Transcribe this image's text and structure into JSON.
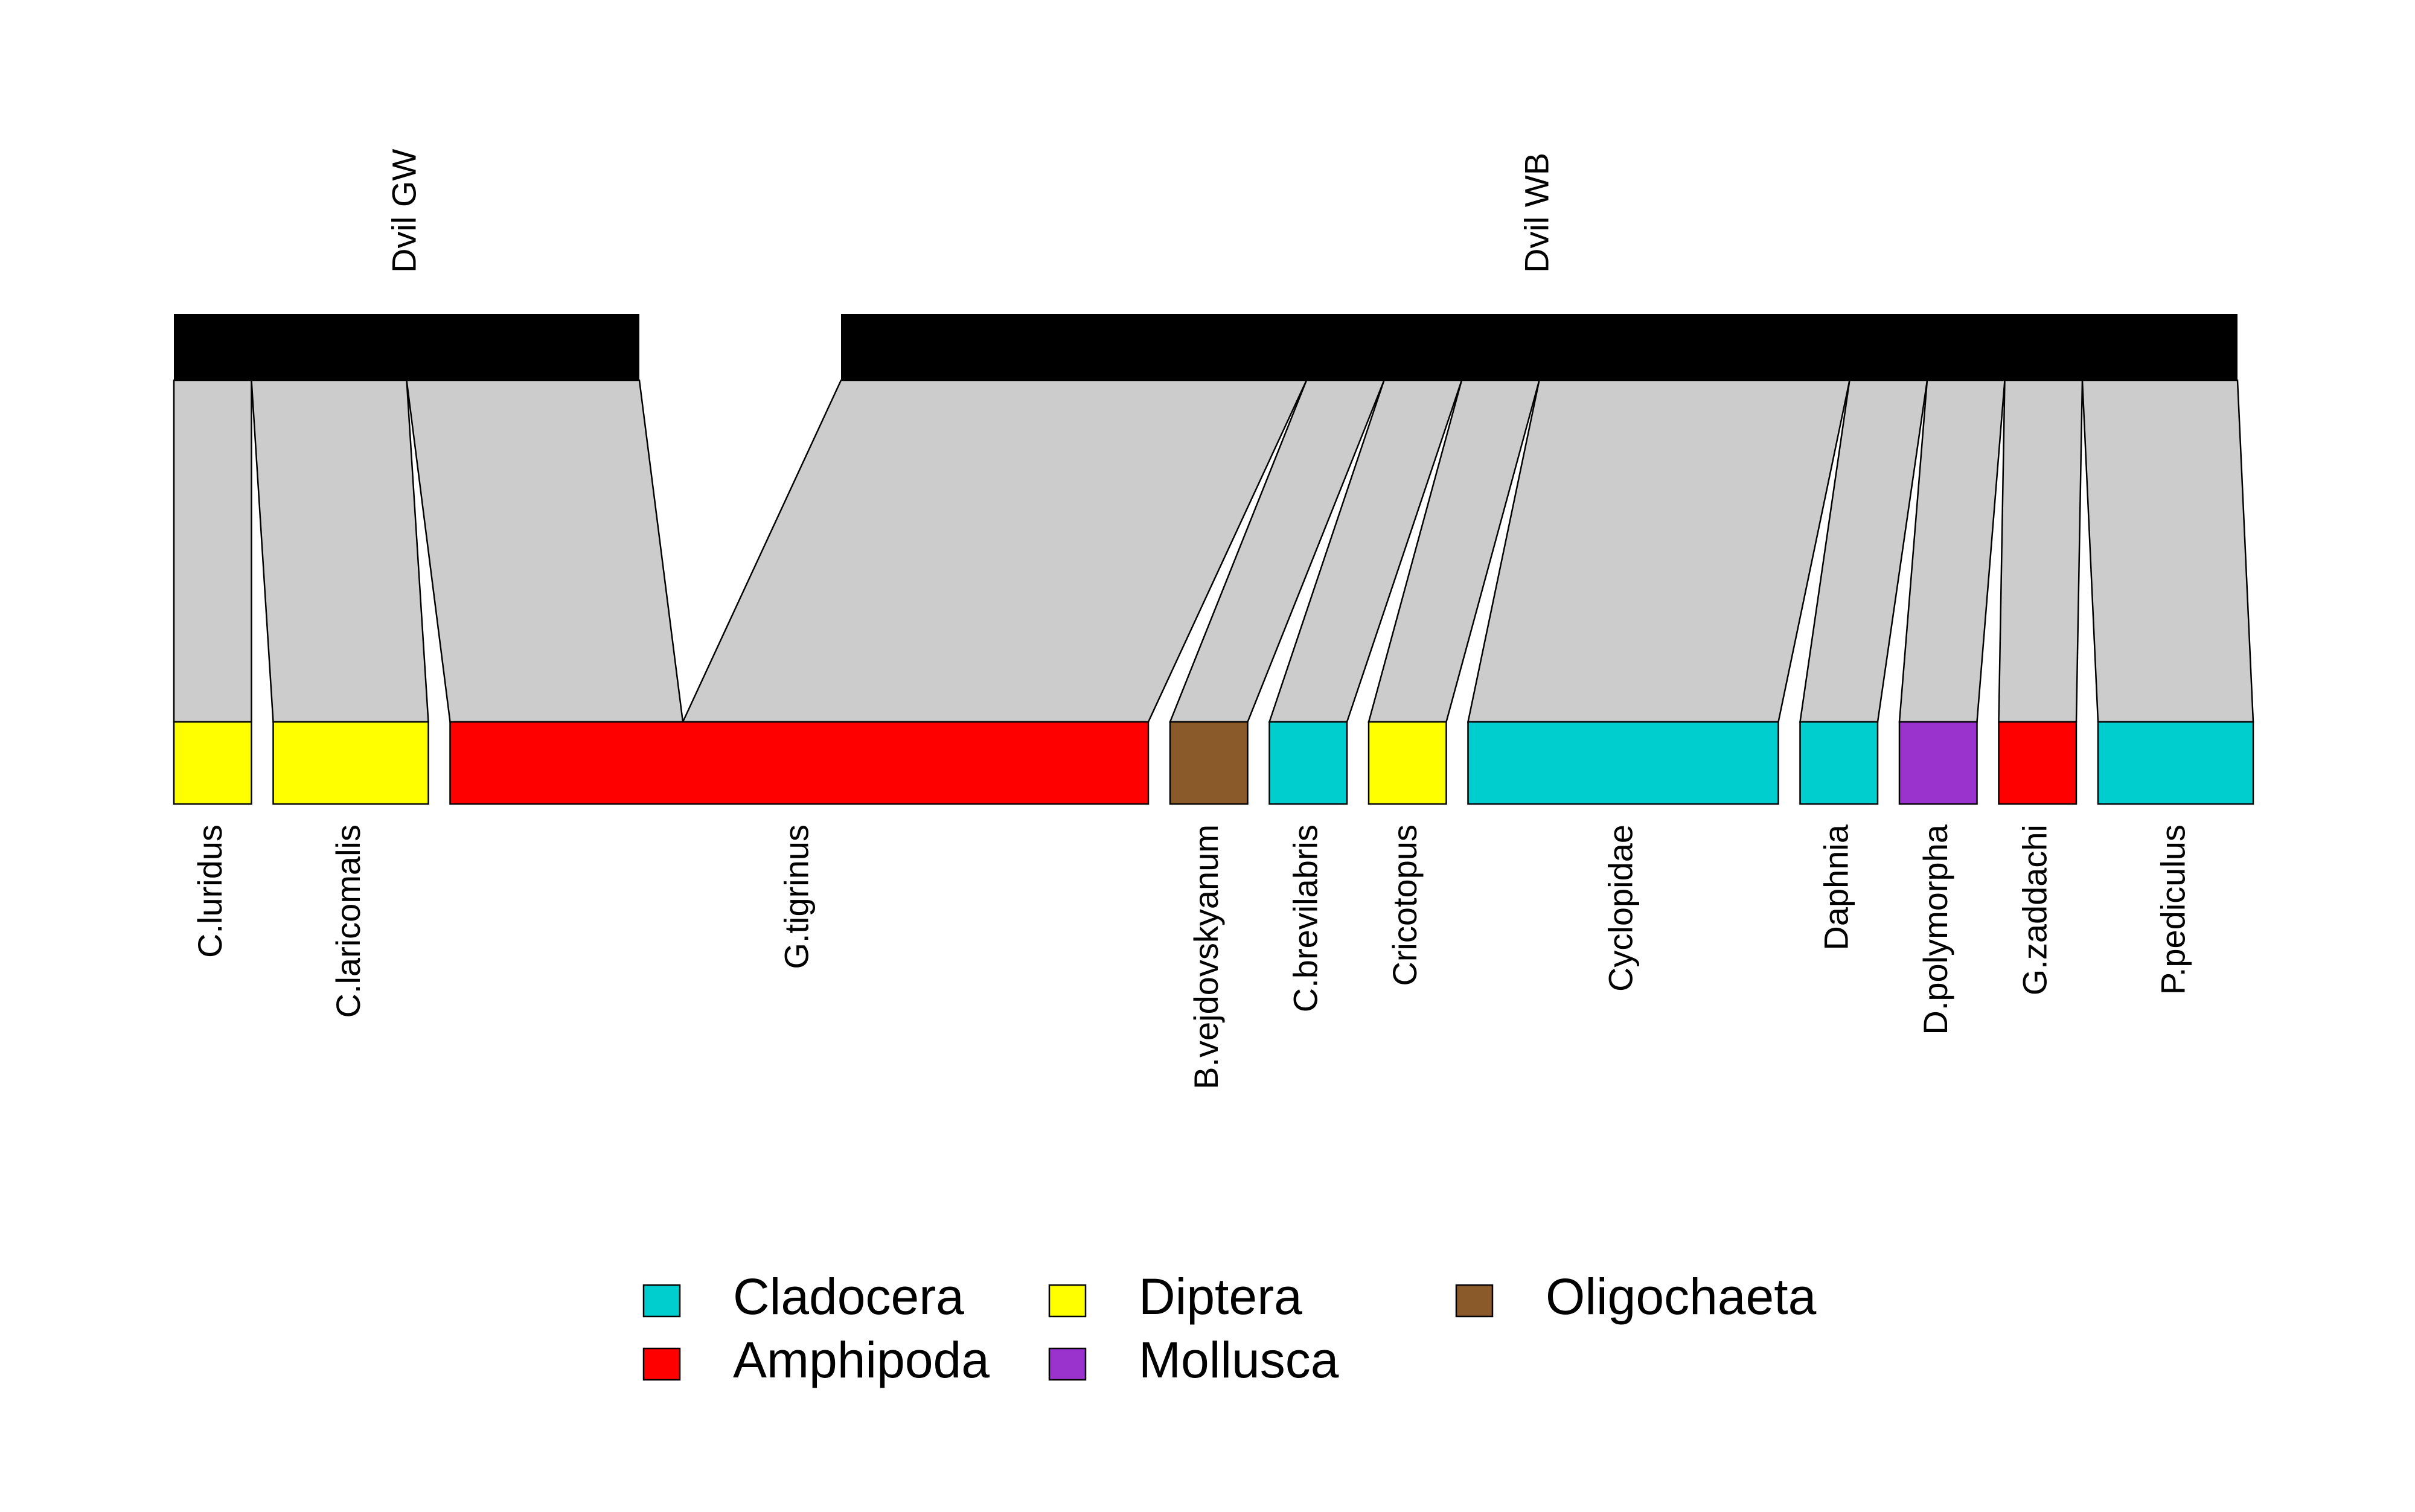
{
  "diagram": {
    "type": "bipartite-web",
    "higher_level": [
      {
        "id": "dvil-gw",
        "label": "Dvil GW",
        "weight": 6
      },
      {
        "id": "dvil-wb",
        "label": "Dvil WB",
        "weight": 18
      }
    ],
    "lower_level": [
      {
        "id": "c-luridus",
        "label": "C.luridus",
        "group": "Diptera"
      },
      {
        "id": "c-laricomalis",
        "label": "C.laricomalis",
        "group": "Diptera"
      },
      {
        "id": "g-tigrinus",
        "label": "G.tigrinus",
        "group": "Amphipoda"
      },
      {
        "id": "b-vejdovskyanum",
        "label": "B.vejdovskyanum",
        "group": "Oligochaeta"
      },
      {
        "id": "c-brevilabris",
        "label": "C.brevilabris",
        "group": "Cladocera"
      },
      {
        "id": "cricotopus",
        "label": "Cricotopus",
        "group": "Diptera"
      },
      {
        "id": "cyclopidae",
        "label": "Cyclopidae",
        "group": "Cladocera"
      },
      {
        "id": "daphnia",
        "label": "Daphnia",
        "group": "Cladocera"
      },
      {
        "id": "d-polymorpha",
        "label": "D.polymorpha",
        "group": "Mollusca"
      },
      {
        "id": "g-zaddachi",
        "label": "G.zaddachi",
        "group": "Amphipoda"
      },
      {
        "id": "p-pediculus",
        "label": "P.pediculus",
        "group": "Cladocera"
      }
    ],
    "interactions": [
      {
        "lower": "c-luridus",
        "higher": "dvil-gw",
        "weight": 1
      },
      {
        "lower": "c-laricomalis",
        "higher": "dvil-gw",
        "weight": 2
      },
      {
        "lower": "g-tigrinus",
        "higher": "dvil-gw",
        "weight": 3
      },
      {
        "lower": "g-tigrinus",
        "higher": "dvil-wb",
        "weight": 6
      },
      {
        "lower": "b-vejdovskyanum",
        "higher": "dvil-wb",
        "weight": 1
      },
      {
        "lower": "c-brevilabris",
        "higher": "dvil-wb",
        "weight": 1
      },
      {
        "lower": "cricotopus",
        "higher": "dvil-wb",
        "weight": 1
      },
      {
        "lower": "cyclopidae",
        "higher": "dvil-wb",
        "weight": 4
      },
      {
        "lower": "daphnia",
        "higher": "dvil-wb",
        "weight": 1
      },
      {
        "lower": "d-polymorpha",
        "higher": "dvil-wb",
        "weight": 1
      },
      {
        "lower": "g-zaddachi",
        "higher": "dvil-wb",
        "weight": 1
      },
      {
        "lower": "p-pediculus",
        "higher": "dvil-wb",
        "weight": 2
      }
    ]
  },
  "legend": {
    "items": [
      {
        "label": "Cladocera",
        "color": "#00CDCD"
      },
      {
        "label": "Amphipoda",
        "color": "#FF0000"
      },
      {
        "label": "Diptera",
        "color": "#FFFF00"
      },
      {
        "label": "Mollusca",
        "color": "#9A32CD"
      },
      {
        "label": "Oligochaeta",
        "color": "#8B5A2B"
      }
    ]
  },
  "colors": {
    "higher_box": "#000000",
    "link": "#CCCCCC",
    "outline": "#000000"
  }
}
